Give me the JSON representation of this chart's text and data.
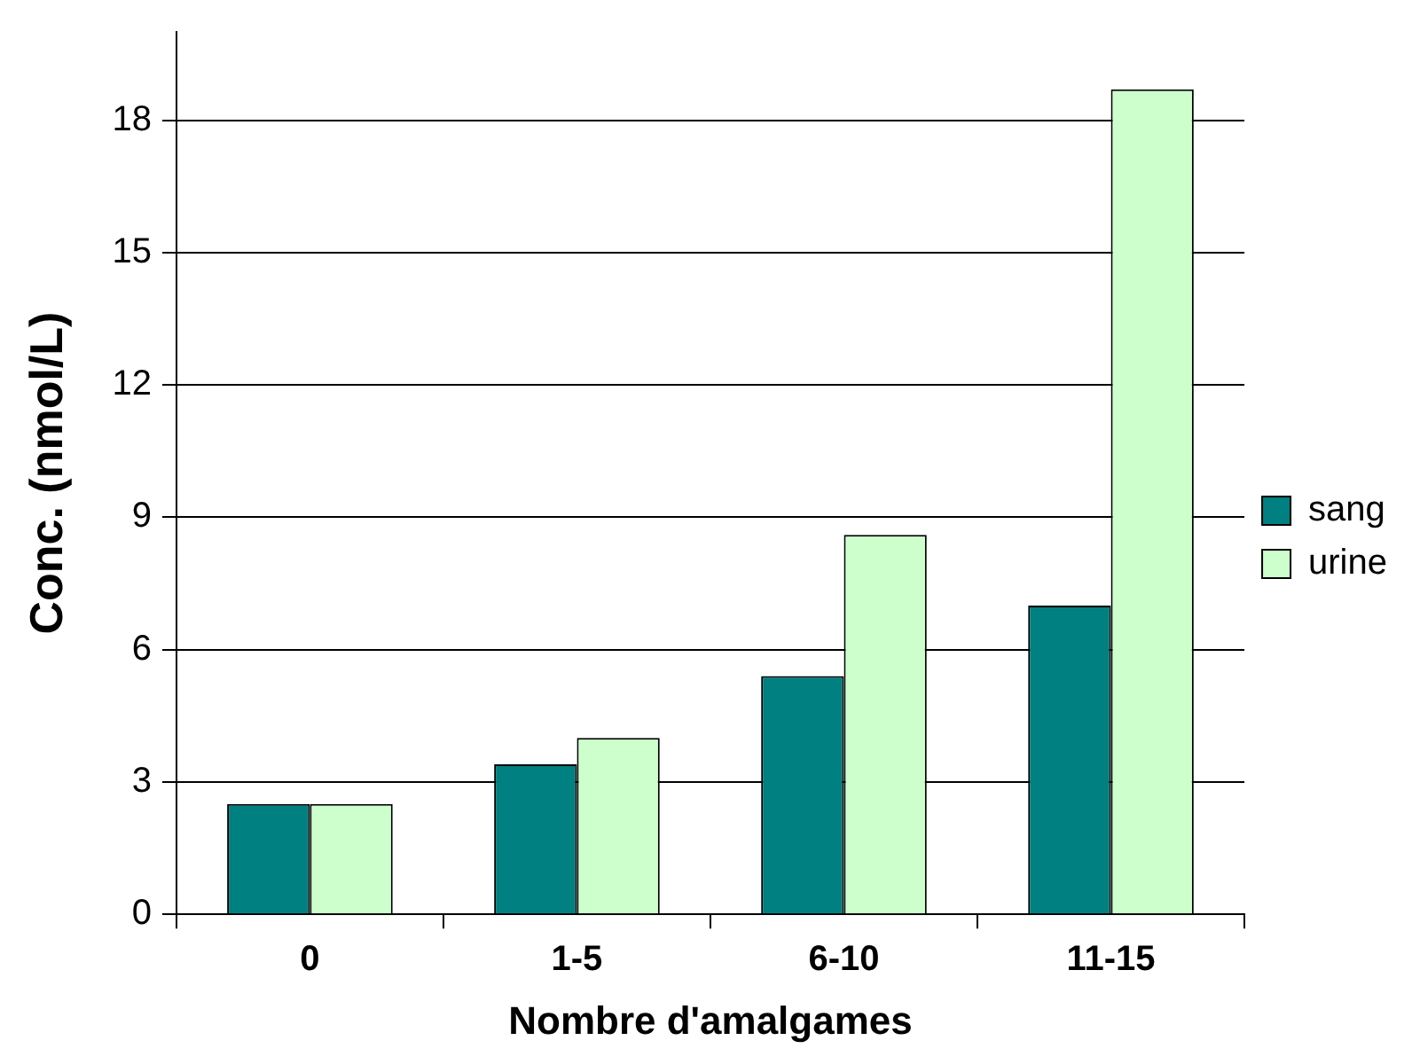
{
  "chart_data": {
    "type": "bar",
    "xlabel": "Nombre d'amalgames",
    "ylabel": "Conc. (nmol/L)",
    "categories": [
      "0",
      "1-5",
      "6-10",
      "11-15"
    ],
    "series": [
      {
        "name": "sang",
        "color": "#008080",
        "values": [
          2.5,
          3.4,
          5.4,
          7.0
        ]
      },
      {
        "name": "urine",
        "color": "#ccffcc",
        "values": [
          2.5,
          4.0,
          8.6,
          18.7
        ]
      }
    ],
    "ylim": [
      0,
      20
    ],
    "yticks": [
      0,
      3,
      6,
      9,
      12,
      15,
      18
    ],
    "grid": "y",
    "legend": "right"
  }
}
